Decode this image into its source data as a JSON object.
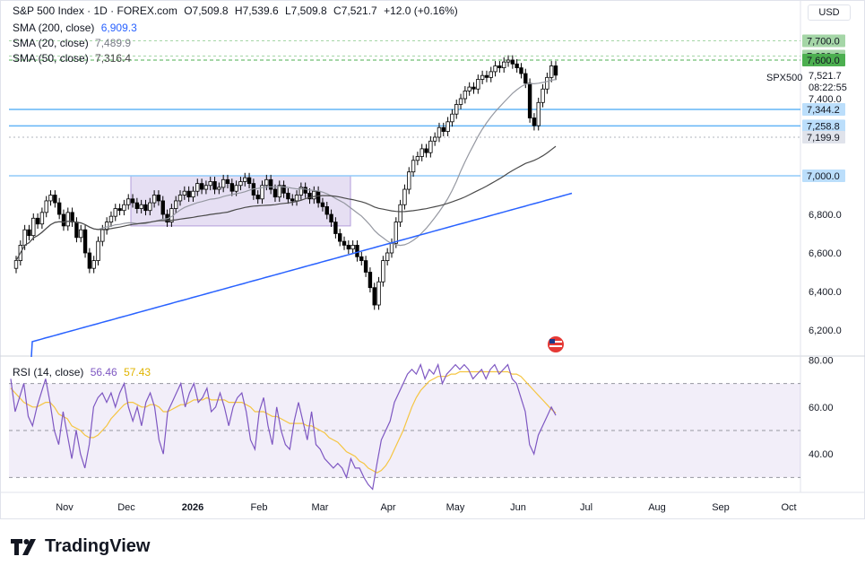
{
  "header": {
    "symbol": "S&P 500 Index · 1D · FOREX.com",
    "open": "O7,509.8",
    "high": "H7,539.6",
    "low": "L7,509.8",
    "close": "C7,521.7",
    "change": "+12.0 (+0.16%)",
    "sma200_label": "SMA (200, close)",
    "sma200_value": "6,909.3",
    "sma20_label": "SMA (20, close)",
    "sma20_value": "7,489.9",
    "sma50_label": "SMA (50, close)",
    "sma50_value": "7,316.4",
    "rsi_label": "RSI (14, close)",
    "rsi_value": "56.46",
    "rsi_ma_value": "57.43"
  },
  "currency": "USD",
  "ticker_tag": "SPX500",
  "countdown": "08:22:55",
  "brand": "TradingView",
  "colors": {
    "up": "#ffffff",
    "down": "#000000",
    "sma200": "#2962ff",
    "sma20": "#9598a1",
    "sma50": "#4a4a4a",
    "rsi": "#7e57c2",
    "rsi_ma": "#f5c542",
    "hline": "#64b5f6",
    "green": "#4caf50",
    "rect": "#d1c4e9"
  },
  "chart_data": {
    "type": "candlestick",
    "price_axis": {
      "ticks": [
        6200,
        6400,
        6600,
        6800,
        7000,
        7200,
        7400,
        7600,
        7700
      ],
      "tick_labels": [
        "6,200.0",
        "6,400.0",
        "6,600.0",
        "6,800.0",
        "7,000.0",
        "7,199.9",
        "7,400.0",
        "7,600.0",
        "7,700.0"
      ]
    },
    "x_axis": {
      "ticks": [
        "Nov",
        "Dec",
        "2026",
        "Feb",
        "Mar",
        "Apr",
        "May",
        "Jun",
        "Jul",
        "Aug",
        "Sep",
        "Oct"
      ]
    },
    "last_price": "7,521.7",
    "level_labels": [
      {
        "value": 7700,
        "label": "7,700.0",
        "style": "green"
      },
      {
        "value": 7620.8,
        "label": "7,620.8",
        "style": "green"
      },
      {
        "value": 7600,
        "label": "7,600.0",
        "style": "green-dashed"
      },
      {
        "value": 7344.2,
        "label": "7,344.2",
        "style": "blue"
      },
      {
        "value": 7258.8,
        "label": "7,258.8",
        "style": "blue"
      },
      {
        "value": 7199.9,
        "label": "7,199.9",
        "style": "gray-dashed"
      },
      {
        "value": 7000,
        "label": "7,000.0",
        "style": "blue"
      }
    ],
    "range_box": {
      "price_low": 6740,
      "price_high": 7000
    },
    "candles_close": [
      6560,
      6640,
      6720,
      6690,
      6780,
      6750,
      6810,
      6870,
      6900,
      6860,
      6800,
      6740,
      6810,
      6760,
      6680,
      6720,
      6600,
      6520,
      6560,
      6660,
      6720,
      6760,
      6790,
      6830,
      6820,
      6850,
      6880,
      6860,
      6830,
      6850,
      6820,
      6860,
      6900,
      6870,
      6800,
      6760,
      6830,
      6870,
      6900,
      6920,
      6890,
      6920,
      6960,
      6930,
      6950,
      6970,
      6930,
      6940,
      6980,
      6960,
      6920,
      6950,
      6970,
      6990,
      6960,
      6900,
      6880,
      6950,
      6980,
      6930,
      6890,
      6950,
      6910,
      6880,
      6870,
      6900,
      6940,
      6910,
      6880,
      6920,
      6860,
      6840,
      6800,
      6760,
      6700,
      6660,
      6640,
      6620,
      6640,
      6580,
      6560,
      6500,
      6420,
      6330,
      6450,
      6560,
      6600,
      6650,
      6760,
      6850,
      6930,
      7020,
      7080,
      7100,
      7140,
      7120,
      7180,
      7200,
      7250,
      7230,
      7280,
      7320,
      7370,
      7400,
      7440,
      7460,
      7450,
      7500,
      7520,
      7510,
      7540,
      7570,
      7560,
      7590,
      7600,
      7580,
      7560,
      7530,
      7480,
      7300,
      7260,
      7380,
      7450,
      7510,
      7570,
      7521.7
    ],
    "series": [
      {
        "name": "SMA (200, close)",
        "last": 6909.3
      },
      {
        "name": "SMA (20, close)",
        "last": 7489.9
      },
      {
        "name": "SMA (50, close)",
        "last": 7316.4
      }
    ],
    "rsi": {
      "ticks": [
        40,
        60,
        80
      ],
      "tick_labels": [
        "40.00",
        "60.00",
        "80.00"
      ],
      "band": [
        30,
        70
      ],
      "mid": 50,
      "values": [
        72,
        58,
        64,
        70,
        56,
        52,
        60,
        66,
        72,
        62,
        50,
        44,
        58,
        48,
        38,
        50,
        40,
        34,
        44,
        60,
        64,
        66,
        62,
        66,
        60,
        66,
        70,
        60,
        54,
        60,
        52,
        62,
        66,
        60,
        46,
        40,
        58,
        62,
        66,
        70,
        60,
        66,
        70,
        62,
        64,
        68,
        58,
        60,
        66,
        60,
        52,
        60,
        64,
        66,
        58,
        46,
        42,
        58,
        64,
        52,
        44,
        60,
        50,
        44,
        42,
        54,
        62,
        54,
        46,
        58,
        44,
        42,
        38,
        36,
        34,
        36,
        34,
        30,
        38,
        34,
        34,
        30,
        27,
        25,
        36,
        46,
        50,
        54,
        62,
        66,
        70,
        74,
        76,
        74,
        78,
        72,
        76,
        74,
        78,
        70,
        74,
        76,
        78,
        76,
        78,
        76,
        72,
        74,
        76,
        72,
        76,
        78,
        74,
        76,
        78,
        72,
        70,
        64,
        58,
        44,
        40,
        48,
        52,
        56,
        60,
        56.46
      ],
      "ma_values": [
        68,
        66,
        64,
        62,
        61,
        60,
        60,
        61,
        62,
        62,
        60,
        57,
        56,
        55,
        52,
        51,
        50,
        48,
        47,
        47,
        48,
        50,
        52,
        55,
        57,
        59,
        61,
        62,
        62,
        61,
        60,
        60,
        61,
        61,
        60,
        58,
        58,
        59,
        60,
        61,
        61,
        62,
        63,
        63,
        63,
        64,
        63,
        63,
        63,
        63,
        62,
        62,
        62,
        62,
        61,
        60,
        58,
        58,
        58,
        57,
        56,
        56,
        55,
        54,
        53,
        53,
        53,
        53,
        52,
        52,
        51,
        50,
        49,
        47,
        46,
        45,
        43,
        41,
        40,
        39,
        37,
        36,
        34,
        33,
        32,
        33,
        35,
        38,
        42,
        46,
        50,
        55,
        60,
        64,
        67,
        69,
        71,
        72,
        73,
        73,
        73,
        74,
        74,
        75,
        75,
        75,
        75,
        75,
        75,
        75,
        75,
        75,
        75,
        75,
        75,
        74,
        74,
        73,
        71,
        69,
        67,
        65,
        63,
        61,
        59,
        57.43
      ]
    }
  }
}
